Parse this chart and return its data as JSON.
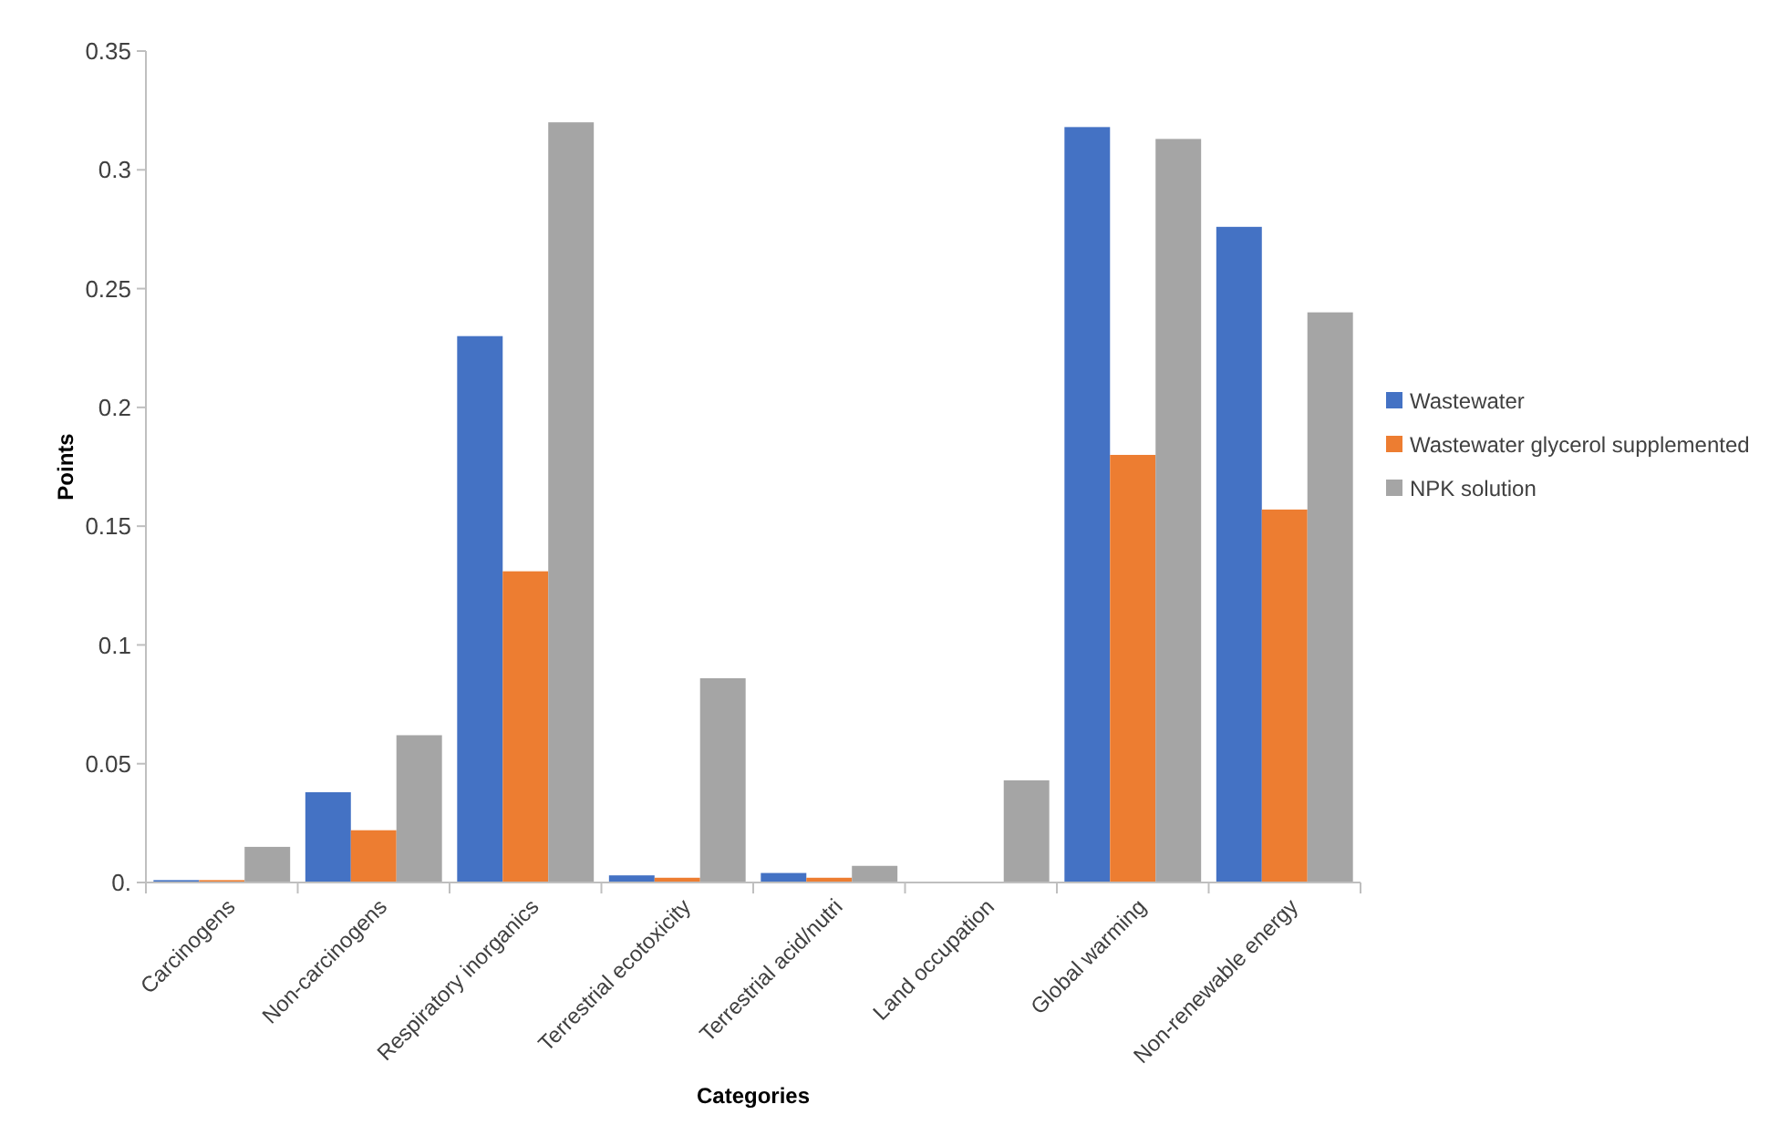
{
  "chart_data": {
    "type": "bar",
    "xlabel": "Categories",
    "ylabel": "Points",
    "categories": [
      "Carcinogens",
      "Non-carcinogens",
      "Respiratory inorganics",
      "Terrestrial ecotoxicity",
      "Terrestrial acid/nutri",
      "Land occupation",
      "Global warming",
      "Non-renewable energy"
    ],
    "series": [
      {
        "name": "Wastewater",
        "color": "#4472c4",
        "values": [
          0.001,
          0.038,
          0.23,
          0.003,
          0.004,
          0,
          0.318,
          0.276
        ]
      },
      {
        "name": "Wastewater glycerol supplemented",
        "color": "#ed7d31",
        "values": [
          0.001,
          0.022,
          0.131,
          0.002,
          0.002,
          0,
          0.18,
          0.157
        ]
      },
      {
        "name": "NPK solution",
        "color": "#a5a5a5",
        "values": [
          0.015,
          0.062,
          0.32,
          0.086,
          0.007,
          0.043,
          0.313,
          0.24
        ]
      }
    ],
    "ylim": [
      0,
      0.35
    ],
    "yticks": [
      {
        "value": 0,
        "label": "0."
      },
      0.05,
      0.1,
      0.15,
      0.2,
      0.25,
      0.3,
      0.35
    ],
    "grid": false,
    "legend": "right"
  }
}
